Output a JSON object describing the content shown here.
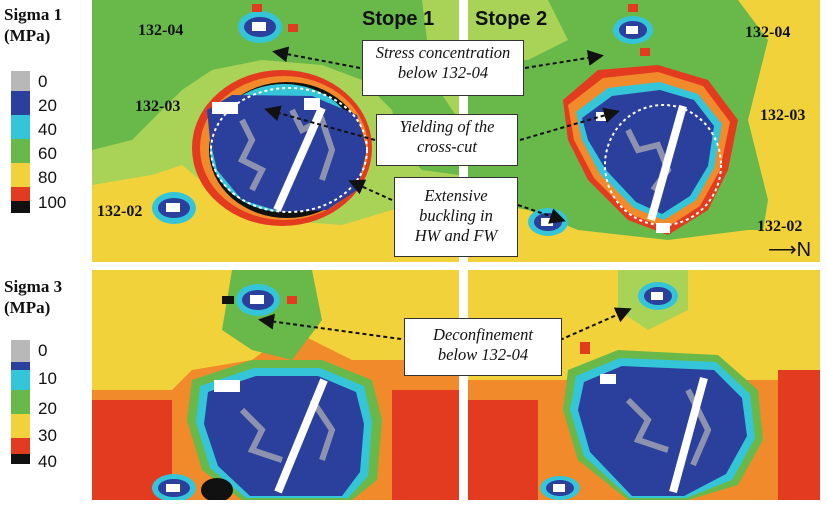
{
  "figure": {
    "sigma1": {
      "title_line1": "Sigma 1",
      "title_line2": "(MPa)",
      "ticks": [
        "0",
        "20",
        "40",
        "60",
        "80",
        "100"
      ]
    },
    "sigma3": {
      "title_line1": "Sigma 3",
      "title_line2": "(MPa)",
      "ticks": [
        "0",
        "10",
        "20",
        "30",
        "40"
      ]
    },
    "stopes": {
      "stope1": "Stope 1",
      "stope2": "Stope 2"
    },
    "drift_labels": {
      "left_top": "132-04",
      "left_mid": "132-03",
      "left_bot": "132-02",
      "right_top": "132-04",
      "right_mid": "132-03",
      "right_bot": "132-02"
    },
    "north": "N",
    "callouts": {
      "stress_concentration": {
        "line1": "Stress concentration",
        "line2": "below 132-04"
      },
      "yielding": {
        "line1": "Yielding of the",
        "line2": "cross-cut"
      },
      "buckling": {
        "line1": "Extensive",
        "line2": "buckling in",
        "line3": "HW and FW"
      },
      "deconfinement": {
        "line1": "Deconfinement",
        "line2": "below 132-04"
      }
    },
    "colors": {
      "dark_blue": "#2b3f9c",
      "cyan": "#35c5d8",
      "green": "#69b94a",
      "light_green": "#a8d357",
      "yellow": "#f2d23a",
      "orange": "#f08a2a",
      "red": "#e23b1f",
      "black": "#111111",
      "gray": "#b8b8b8"
    }
  }
}
